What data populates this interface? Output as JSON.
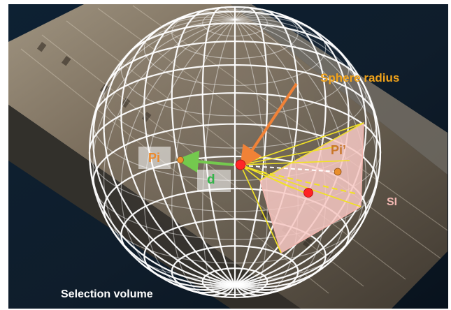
{
  "labels": {
    "sphere_radius": "Sphere radius",
    "pi": "Pi",
    "pi_prime": "Pi’",
    "d": "d",
    "si": "SI",
    "selection_volume": "Selection volume"
  },
  "colors": {
    "background_dark": "#0c1a2a",
    "sphere_grid": "#ffffff",
    "radius_arrow": "#f07a2a",
    "distance_arrow": "#6cc644",
    "projection_lines": "#f1e21a",
    "plane_fill": "#f7c7c2",
    "center_point": "#ff1a1a",
    "pi_point": "#e88a24"
  }
}
